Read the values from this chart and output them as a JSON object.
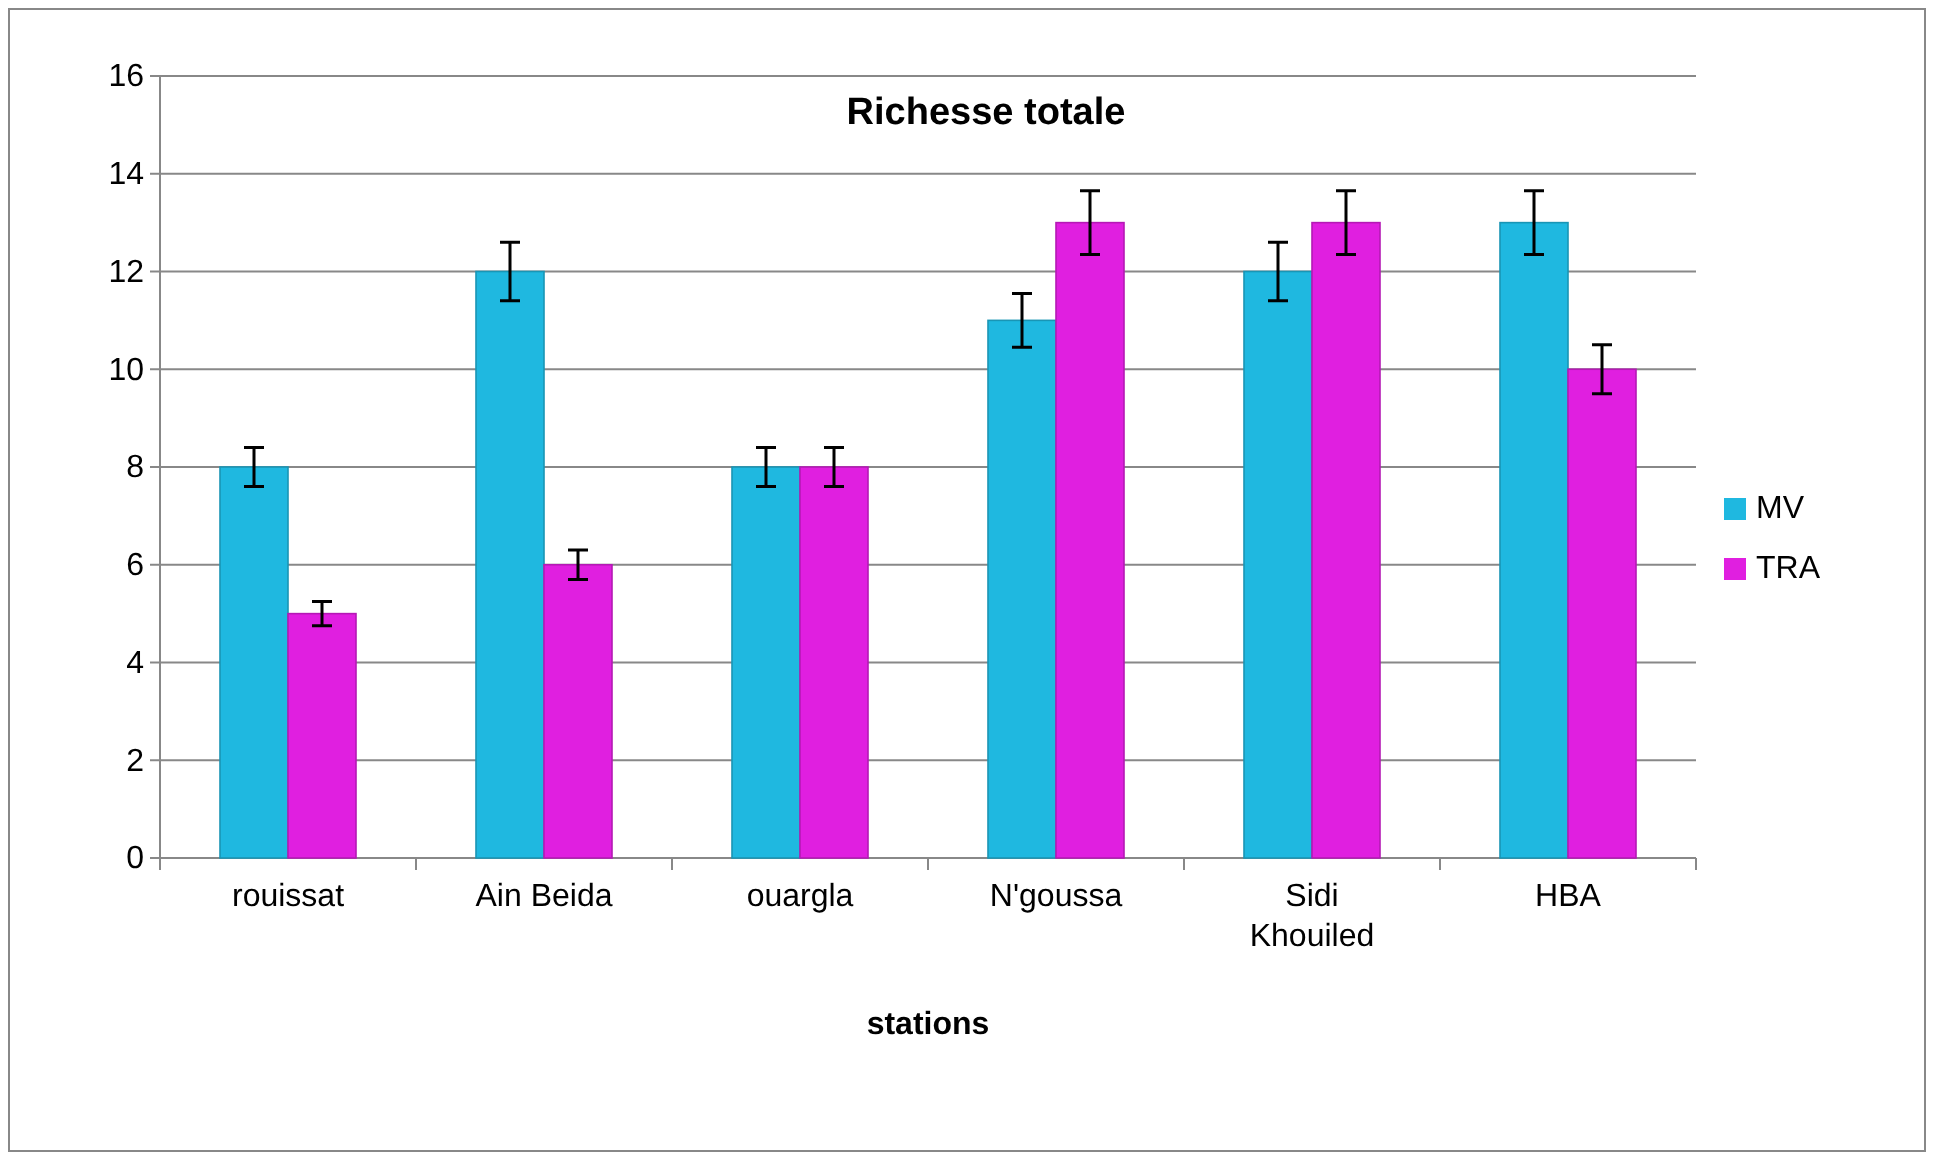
{
  "chart_data": {
    "type": "bar",
    "title": "Richesse totale",
    "xlabel": "stations",
    "categories": [
      "rouissat",
      "Ain Beida",
      "ouargla",
      "N'goussa",
      "Sidi Khouiled",
      "HBA"
    ],
    "series": [
      {
        "name": "MV",
        "color": "#1fb8e0",
        "values": [
          8,
          12,
          8,
          11,
          12,
          13
        ],
        "errors": [
          0.4,
          0.6,
          0.4,
          0.55,
          0.6,
          0.65
        ]
      },
      {
        "name": "TRA",
        "color": "#e01fe0",
        "values": [
          5,
          6,
          8,
          13,
          13,
          10
        ],
        "errors": [
          0.25,
          0.3,
          0.4,
          0.65,
          0.65,
          0.5
        ]
      }
    ],
    "ylim": [
      0,
      16
    ],
    "yticks": [
      0,
      2,
      4,
      6,
      8,
      10,
      12,
      14,
      16
    ],
    "grid": "y",
    "legend": "right"
  }
}
